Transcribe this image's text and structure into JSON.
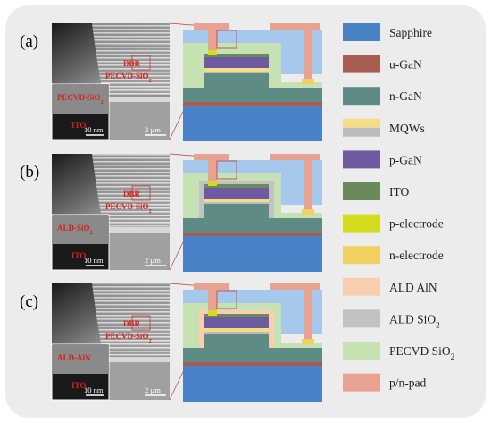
{
  "panels": [
    {
      "label": "(a)",
      "tem": {
        "dbr": "DBR",
        "pecvd": "PECVD-SiO",
        "pecvd_sub": "2",
        "inset_layer": "PECVD-SiO",
        "inset_sub": "2",
        "ito": "ITO",
        "scale_small": "10 nm",
        "scale_large": "2 µm"
      }
    },
    {
      "label": "(b)",
      "tem": {
        "dbr": "DBR",
        "pecvd": "PECVD-SiO",
        "pecvd_sub": "2",
        "inset_layer": "ALD-SiO",
        "inset_sub": "2",
        "ito": "ITO",
        "scale_small": "10 nm",
        "scale_large": "2 µm"
      }
    },
    {
      "label": "(c)",
      "tem": {
        "dbr": "DBR",
        "pecvd": "PECVD-SiO",
        "pecvd_sub": "2",
        "inset_layer": "ALD-AlN",
        "inset_sub": "",
        "ito": "ITO",
        "scale_small": "10 nm",
        "scale_large": "2 µm"
      }
    }
  ],
  "legend": [
    {
      "label": "Sapphire",
      "sub": "",
      "color": "#4a82c8"
    },
    {
      "label": "u-GaN",
      "sub": "",
      "color": "#a85d52"
    },
    {
      "label": "n-GaN",
      "sub": "",
      "color": "#5e8c85"
    },
    {
      "label": "MQWs",
      "sub": "",
      "color": "#f5dd88",
      "color2": "#bcbcbc"
    },
    {
      "label": "p-GaN",
      "sub": "",
      "color": "#6d5aa0"
    },
    {
      "label": "ITO",
      "sub": "",
      "color": "#6a8a5c"
    },
    {
      "label": "p-electrode",
      "sub": "",
      "color": "#d4dc1e"
    },
    {
      "label": "n-electrode",
      "sub": "",
      "color": "#f0d060"
    },
    {
      "label": "ALD AlN",
      "sub": "",
      "color": "#f7cfb0"
    },
    {
      "label": "ALD SiO",
      "sub": "2",
      "color": "#c2c2c2"
    },
    {
      "label": "PECVD SiO",
      "sub": "2",
      "color": "#c6e2b2"
    },
    {
      "label": "p/n-pad",
      "sub": "",
      "color": "#e8a292"
    }
  ],
  "colors": {
    "background_panel": "#ececec",
    "dbr": "#a6c8ec",
    "zoom_lines": "#c23a3a"
  }
}
